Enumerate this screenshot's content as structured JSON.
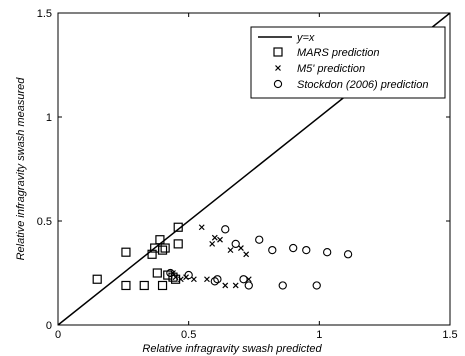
{
  "chart_data": {
    "type": "scatter",
    "xlabel": "Relative infragravity swash predicted",
    "ylabel": "Relative infragravity swash measured",
    "xlim": [
      0,
      1.5
    ],
    "ylim": [
      0,
      1.5
    ],
    "xticks": [
      "0",
      "0.5",
      "1",
      "1.5"
    ],
    "yticks": [
      "0",
      "0.5",
      "1",
      "1.5"
    ],
    "grid": false,
    "legend_position": "top-right",
    "legend": [
      {
        "label": "y=x",
        "marker": "line"
      },
      {
        "label": "MARS prediction",
        "marker": "square"
      },
      {
        "label": "M5' prediction",
        "marker": "x"
      },
      {
        "label": "Stockdon (2006) prediction",
        "marker": "circle"
      }
    ],
    "reference_line": {
      "name": "y=x",
      "x": [
        0,
        1.5
      ],
      "y": [
        0,
        1.5
      ]
    },
    "series": [
      {
        "name": "MARS prediction",
        "marker": "square",
        "points": [
          [
            0.15,
            0.22
          ],
          [
            0.26,
            0.35
          ],
          [
            0.26,
            0.19
          ],
          [
            0.33,
            0.19
          ],
          [
            0.36,
            0.34
          ],
          [
            0.37,
            0.37
          ],
          [
            0.38,
            0.25
          ],
          [
            0.39,
            0.41
          ],
          [
            0.4,
            0.19
          ],
          [
            0.4,
            0.36
          ],
          [
            0.41,
            0.37
          ],
          [
            0.42,
            0.24
          ],
          [
            0.44,
            0.23
          ],
          [
            0.45,
            0.22
          ],
          [
            0.46,
            0.47
          ],
          [
            0.46,
            0.39
          ]
        ]
      },
      {
        "name": "M5' prediction",
        "marker": "x",
        "points": [
          [
            0.44,
            0.25
          ],
          [
            0.45,
            0.23
          ],
          [
            0.47,
            0.22
          ],
          [
            0.49,
            0.23
          ],
          [
            0.52,
            0.22
          ],
          [
            0.55,
            0.47
          ],
          [
            0.57,
            0.22
          ],
          [
            0.59,
            0.39
          ],
          [
            0.6,
            0.42
          ],
          [
            0.62,
            0.41
          ],
          [
            0.64,
            0.19
          ],
          [
            0.66,
            0.36
          ],
          [
            0.68,
            0.19
          ],
          [
            0.7,
            0.37
          ],
          [
            0.72,
            0.34
          ],
          [
            0.73,
            0.22
          ]
        ]
      },
      {
        "name": "Stockdon (2006) prediction",
        "marker": "circle",
        "points": [
          [
            0.43,
            0.25
          ],
          [
            0.5,
            0.24
          ],
          [
            0.6,
            0.21
          ],
          [
            0.61,
            0.22
          ],
          [
            0.64,
            0.46
          ],
          [
            0.68,
            0.39
          ],
          [
            0.71,
            0.22
          ],
          [
            0.73,
            0.19
          ],
          [
            0.77,
            0.41
          ],
          [
            0.82,
            0.36
          ],
          [
            0.86,
            0.19
          ],
          [
            0.9,
            0.37
          ],
          [
            0.95,
            0.36
          ],
          [
            0.99,
            0.19
          ],
          [
            1.03,
            0.35
          ],
          [
            1.11,
            0.34
          ]
        ]
      }
    ]
  }
}
